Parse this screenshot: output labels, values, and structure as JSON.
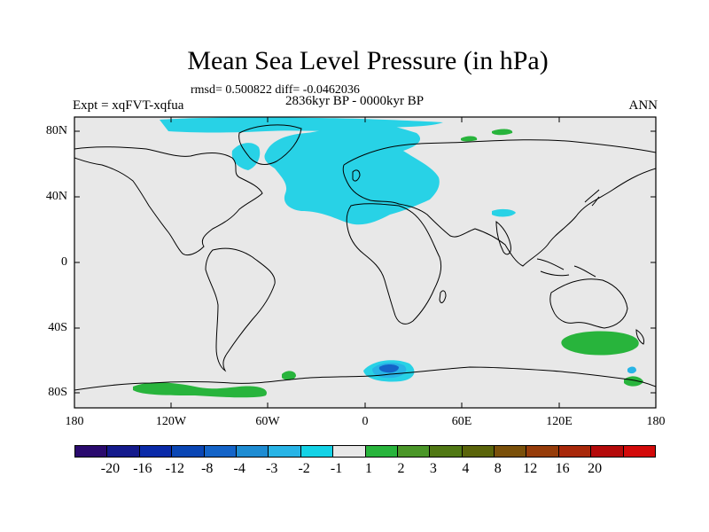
{
  "title": "Mean Sea Level Pressure (in hPa)",
  "stats_line": "rmsd= 0.500822 diff= -0.0462036",
  "period_line": "2836kyr BP - 0000kyr BP",
  "experiment_label": "Expt = xqFVT-xqfua",
  "season_label": "ANN",
  "map": {
    "y_ticks": [
      "80N",
      "40N",
      "0",
      "40S",
      "80S"
    ],
    "x_ticks": [
      "180",
      "120W",
      "60W",
      "0",
      "60E",
      "120E",
      "180"
    ],
    "background_color": "#e8e8e8",
    "coast_color": "#000000"
  },
  "colorbar": {
    "colors": [
      "#2a0a6e",
      "#141a8c",
      "#0a2aa8",
      "#0a46b4",
      "#1464c8",
      "#1e8cd2",
      "#28b4e6",
      "#14d2e6",
      "#e8e8e8",
      "#28b43c",
      "#4a9628",
      "#507814",
      "#5a640a",
      "#7a500a",
      "#963c0a",
      "#a8280a",
      "#b40a0a",
      "#d20a0a"
    ],
    "labels": [
      "-20",
      "-16",
      "-12",
      "-8",
      "-4",
      "-3",
      "-2",
      "-1",
      "1",
      "2",
      "3",
      "4",
      "8",
      "12",
      "16",
      "20"
    ]
  },
  "anomaly_colors": {
    "neg_light": "#28d2e6",
    "neg_mid": "#28b4e6",
    "neg_strong": "#1464c8",
    "pos_light": "#28b43c"
  }
}
